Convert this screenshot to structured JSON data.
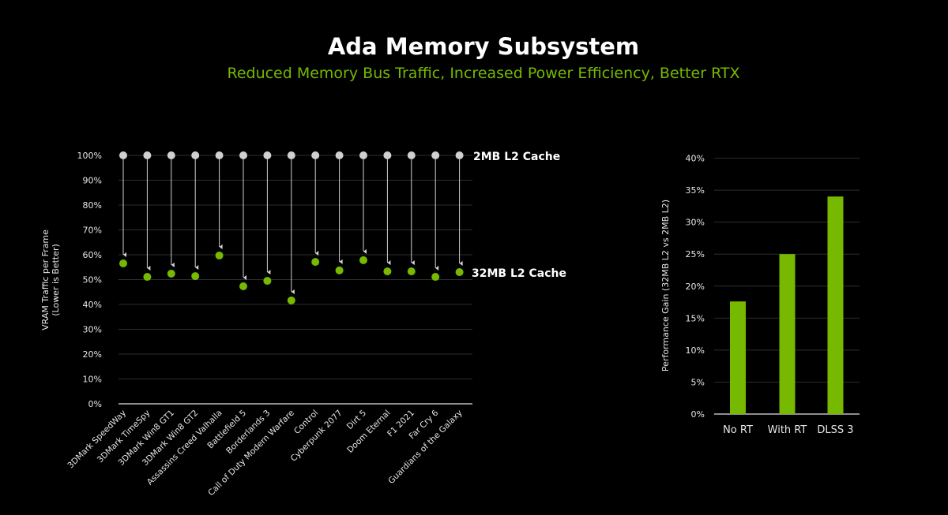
{
  "header": {
    "title": "Ada Memory Subsystem",
    "subtitle": "Reduced Memory Bus Traffic, Increased Power Efficiency, Better RTX"
  },
  "colors": {
    "background": "#000000",
    "accent_green": "#76b900",
    "baseline_gray": "#d0d0d0",
    "grid": "#333333"
  },
  "chart_data": [
    {
      "type": "scatter",
      "title": "",
      "ylabel": "VRAM Traffic per Frame",
      "ylabel_sub": "(Lower is Better)",
      "xlabel": "",
      "ylim": [
        0,
        100
      ],
      "yticks": [
        "0%",
        "10%",
        "20%",
        "30%",
        "40%",
        "50%",
        "60%",
        "70%",
        "80%",
        "90%",
        "100%"
      ],
      "grid": true,
      "categories": [
        "3DMark SpeedWay",
        "3DMark TimeSpy",
        "3DMark Win8 GT1",
        "3DMark Win8 GT2",
        "Assassins Creed Valhalla",
        "Battlefield 5",
        "Borderlands 3",
        "Call of Duty Modern Warfare",
        "Control",
        "Cyberpunk 2077",
        "Dirt 5",
        "Doom Eternal",
        "F1 2021",
        "Far Cry 6",
        "Guardians of the Galaxy"
      ],
      "series": [
        {
          "name": "2MB L2 Cache",
          "color": "#d0d0d0",
          "values": [
            100,
            100,
            100,
            100,
            100,
            100,
            100,
            100,
            100,
            100,
            100,
            100,
            100,
            100,
            100
          ]
        },
        {
          "name": "32MB L2 Cache",
          "color": "#76b900",
          "values": [
            56.5,
            51.1,
            52.4,
            51.4,
            59.7,
            47.3,
            49.5,
            41.6,
            57.1,
            53.7,
            57.8,
            53.3,
            53.3,
            51.1,
            53.0
          ]
        }
      ],
      "legend_position": "right-inline"
    },
    {
      "type": "bar",
      "title": "",
      "ylabel": "Performance Gain (32MB L2 vs 2MB L2)",
      "xlabel": "",
      "ylim": [
        0,
        40
      ],
      "yticks": [
        "0%",
        "5%",
        "10%",
        "15%",
        "20%",
        "25%",
        "30%",
        "35%",
        "40%"
      ],
      "grid": true,
      "categories": [
        "No RT",
        "With RT",
        "DLSS 3"
      ],
      "values": [
        17.6,
        25,
        34
      ],
      "color": "#76b900"
    }
  ]
}
